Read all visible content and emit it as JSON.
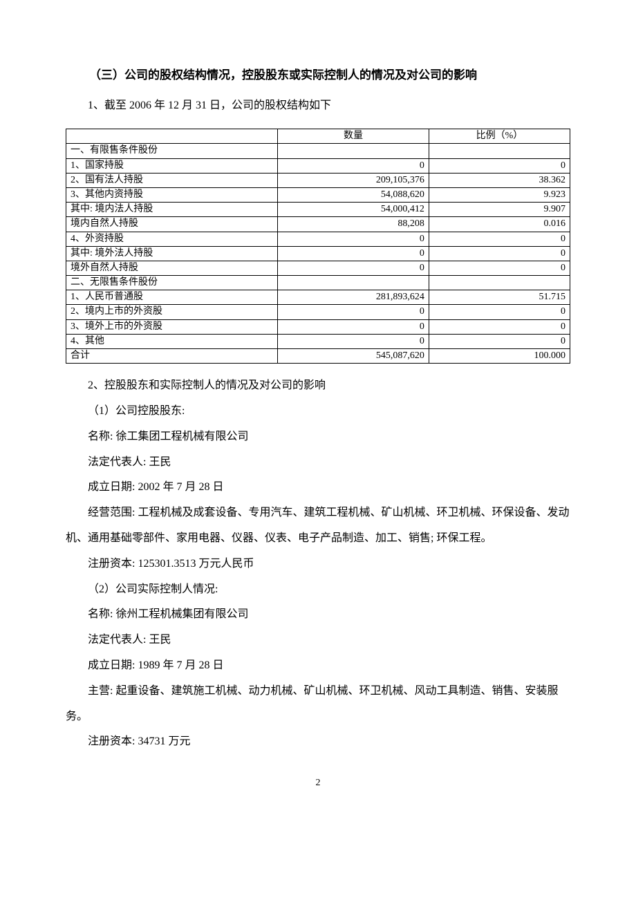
{
  "heading": "（三）公司的股权结构情况，控股股东或实际控制人的情况及对公司的影响",
  "para1": "1、截至 2006 年 12 月 31 日，公司的股权结构如下",
  "table": {
    "headers": {
      "c0": "",
      "c1": "数量",
      "c2": "比例（%）"
    },
    "rows": [
      {
        "label": "一、有限售条件股份",
        "qty": "",
        "pct": ""
      },
      {
        "label": "1、国家持股",
        "qty": "0",
        "pct": "0"
      },
      {
        "label": "2、国有法人持股",
        "qty": "209,105,376",
        "pct": "38.362"
      },
      {
        "label": "3、其他内资持股",
        "qty": "54,088,620",
        "pct": "9.923"
      },
      {
        "label": "其中: 境内法人持股",
        "qty": "54,000,412",
        "pct": "9.907"
      },
      {
        "label": "境内自然人持股",
        "qty": "88,208",
        "pct": "0.016"
      },
      {
        "label": "4、外资持股",
        "qty": "0",
        "pct": "0"
      },
      {
        "label": "其中: 境外法人持股",
        "qty": "0",
        "pct": "0"
      },
      {
        "label": "境外自然人持股",
        "qty": "0",
        "pct": "0"
      },
      {
        "label": "二、无限售条件股份",
        "qty": "",
        "pct": ""
      },
      {
        "label": "1、人民币普通股",
        "qty": "281,893,624",
        "pct": "51.715"
      },
      {
        "label": "2、境内上市的外资股",
        "qty": "0",
        "pct": "0"
      },
      {
        "label": "3、境外上市的外资股",
        "qty": "0",
        "pct": "0"
      },
      {
        "label": "4、其他",
        "qty": "0",
        "pct": "0"
      },
      {
        "label": "合计",
        "qty": "545,087,620",
        "pct": "100.000"
      }
    ]
  },
  "para2": "2、控股股东和实际控制人的情况及对公司的影响",
  "s1_title": "（1）公司控股股东:",
  "s1_name": "名称: 徐工集团工程机械有限公司",
  "s1_legal": "法定代表人: 王民",
  "s1_date": "成立日期: 2002 年 7 月 28 日",
  "s1_scope": "经营范围: 工程机械及成套设备、专用汽车、建筑工程机械、矿山机械、环卫机械、环保设备、发动机、通用基础零部件、家用电器、仪器、仪表、电子产品制造、加工、销售; 环保工程。",
  "s1_capital": "注册资本: 125301.3513 万元人民币",
  "s2_title": "（2）公司实际控制人情况:",
  "s2_name": "名称: 徐州工程机械集团有限公司",
  "s2_legal": "法定代表人: 王民",
  "s2_date": "成立日期: 1989 年 7 月 28 日",
  "s2_scope": "主营: 起重设备、建筑施工机械、动力机械、矿山机械、环卫机械、风动工具制造、销售、安装服务。",
  "s2_capital": "注册资本: 34731 万元",
  "page_number": "2"
}
